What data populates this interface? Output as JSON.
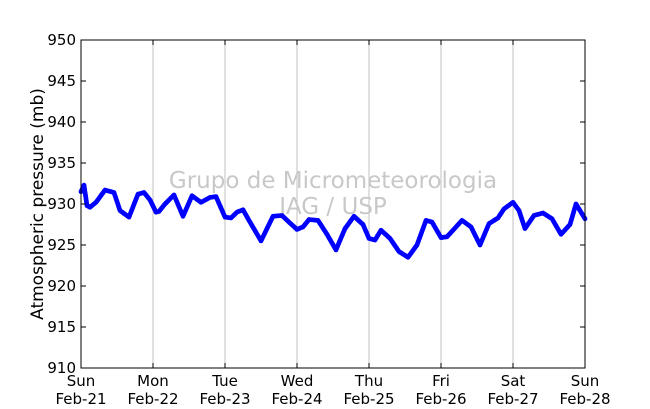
{
  "chart_data": {
    "type": "scatter",
    "title": "",
    "xlabel": "",
    "ylabel": "Atmospheric pressure (mb)",
    "ylim": [
      910,
      950
    ],
    "yticks": [
      910,
      915,
      920,
      925,
      930,
      935,
      940,
      945,
      950
    ],
    "xlim": [
      "2010-02-21",
      "2010-02-28"
    ],
    "xticks": [
      {
        "day": "Sun",
        "date": "Feb-21"
      },
      {
        "day": "Mon",
        "date": "Feb-22"
      },
      {
        "day": "Tue",
        "date": "Feb-23"
      },
      {
        "day": "Wed",
        "date": "Feb-24"
      },
      {
        "day": "Thu",
        "date": "Feb-25"
      },
      {
        "day": "Fri",
        "date": "Feb-26"
      },
      {
        "day": "Sat",
        "date": "Feb-27"
      },
      {
        "day": "Sun",
        "date": "Feb-28"
      }
    ],
    "grid": "vertical",
    "watermark": [
      "Grupo de Micrometeorologia",
      "IAG / USP"
    ],
    "series": [
      {
        "color": "#0000ff",
        "x": [
          "2010-02-21 00:00",
          "2010-02-21 01:00",
          "2010-02-21 02:00",
          "2010-02-21 03:00",
          "2010-02-21 05:00",
          "2010-02-21 08:00",
          "2010-02-21 11:00",
          "2010-02-21 13:00",
          "2010-02-21 16:00",
          "2010-02-21 19:00",
          "2010-02-21 21:00",
          "2010-02-21 23:00",
          "2010-02-22 01:00",
          "2010-02-22 02:00",
          "2010-02-22 04:00",
          "2010-02-22 07:00",
          "2010-02-22 10:00",
          "2010-02-22 13:00",
          "2010-02-22 16:00",
          "2010-02-22 19:00",
          "2010-02-22 21:00",
          "2010-02-23 00:00",
          "2010-02-23 02:00",
          "2010-02-23 04:00",
          "2010-02-23 06:00",
          "2010-02-23 08:00",
          "2010-02-23 12:00",
          "2010-02-23 16:00",
          "2010-02-23 19:00",
          "2010-02-23 21:00",
          "2010-02-24 00:00",
          "2010-02-24 02:00",
          "2010-02-24 04:00",
          "2010-02-24 07:00",
          "2010-02-24 10:00",
          "2010-02-24 13:00",
          "2010-02-24 16:00",
          "2010-02-24 19:00",
          "2010-02-24 22:00",
          "2010-02-25 00:00",
          "2010-02-25 02:00",
          "2010-02-25 04:00",
          "2010-02-25 07:00",
          "2010-02-25 10:00",
          "2010-02-25 13:00",
          "2010-02-25 16:00",
          "2010-02-25 19:00",
          "2010-02-25 21:00",
          "2010-02-26 00:00",
          "2010-02-26 02:00",
          "2010-02-26 04:00",
          "2010-02-26 07:00",
          "2010-02-26 10:00",
          "2010-02-26 13:00",
          "2010-02-26 16:00",
          "2010-02-26 19:00",
          "2010-02-26 21:00",
          "2010-02-27 00:00",
          "2010-02-27 02:00",
          "2010-02-27 04:00",
          "2010-02-27 07:00",
          "2010-02-27 10:00",
          "2010-02-27 13:00",
          "2010-02-27 16:00",
          "2010-02-27 19:00",
          "2010-02-27 21:00",
          "2010-02-28 00:00"
        ],
        "y": [
          931.5,
          932.3,
          929.8,
          929.6,
          930.2,
          931.7,
          931.4,
          929.2,
          928.4,
          931.2,
          931.4,
          930.5,
          929.0,
          929.1,
          930.0,
          931.1,
          928.5,
          931.0,
          930.2,
          930.8,
          930.9,
          928.4,
          928.3,
          929.0,
          929.3,
          928.0,
          925.5,
          928.5,
          928.6,
          927.9,
          926.9,
          927.2,
          928.1,
          928.0,
          926.3,
          924.4,
          927.0,
          928.5,
          927.5,
          925.8,
          925.6,
          926.8,
          925.8,
          924.2,
          923.5,
          925.0,
          928.0,
          927.8,
          925.9,
          926.0,
          926.8,
          928.0,
          927.2,
          925.0,
          927.6,
          928.3,
          929.4,
          930.2,
          929.2,
          927.0,
          928.6,
          928.9,
          928.2,
          926.3,
          927.5,
          930.0,
          928.2
        ]
      }
    ]
  }
}
